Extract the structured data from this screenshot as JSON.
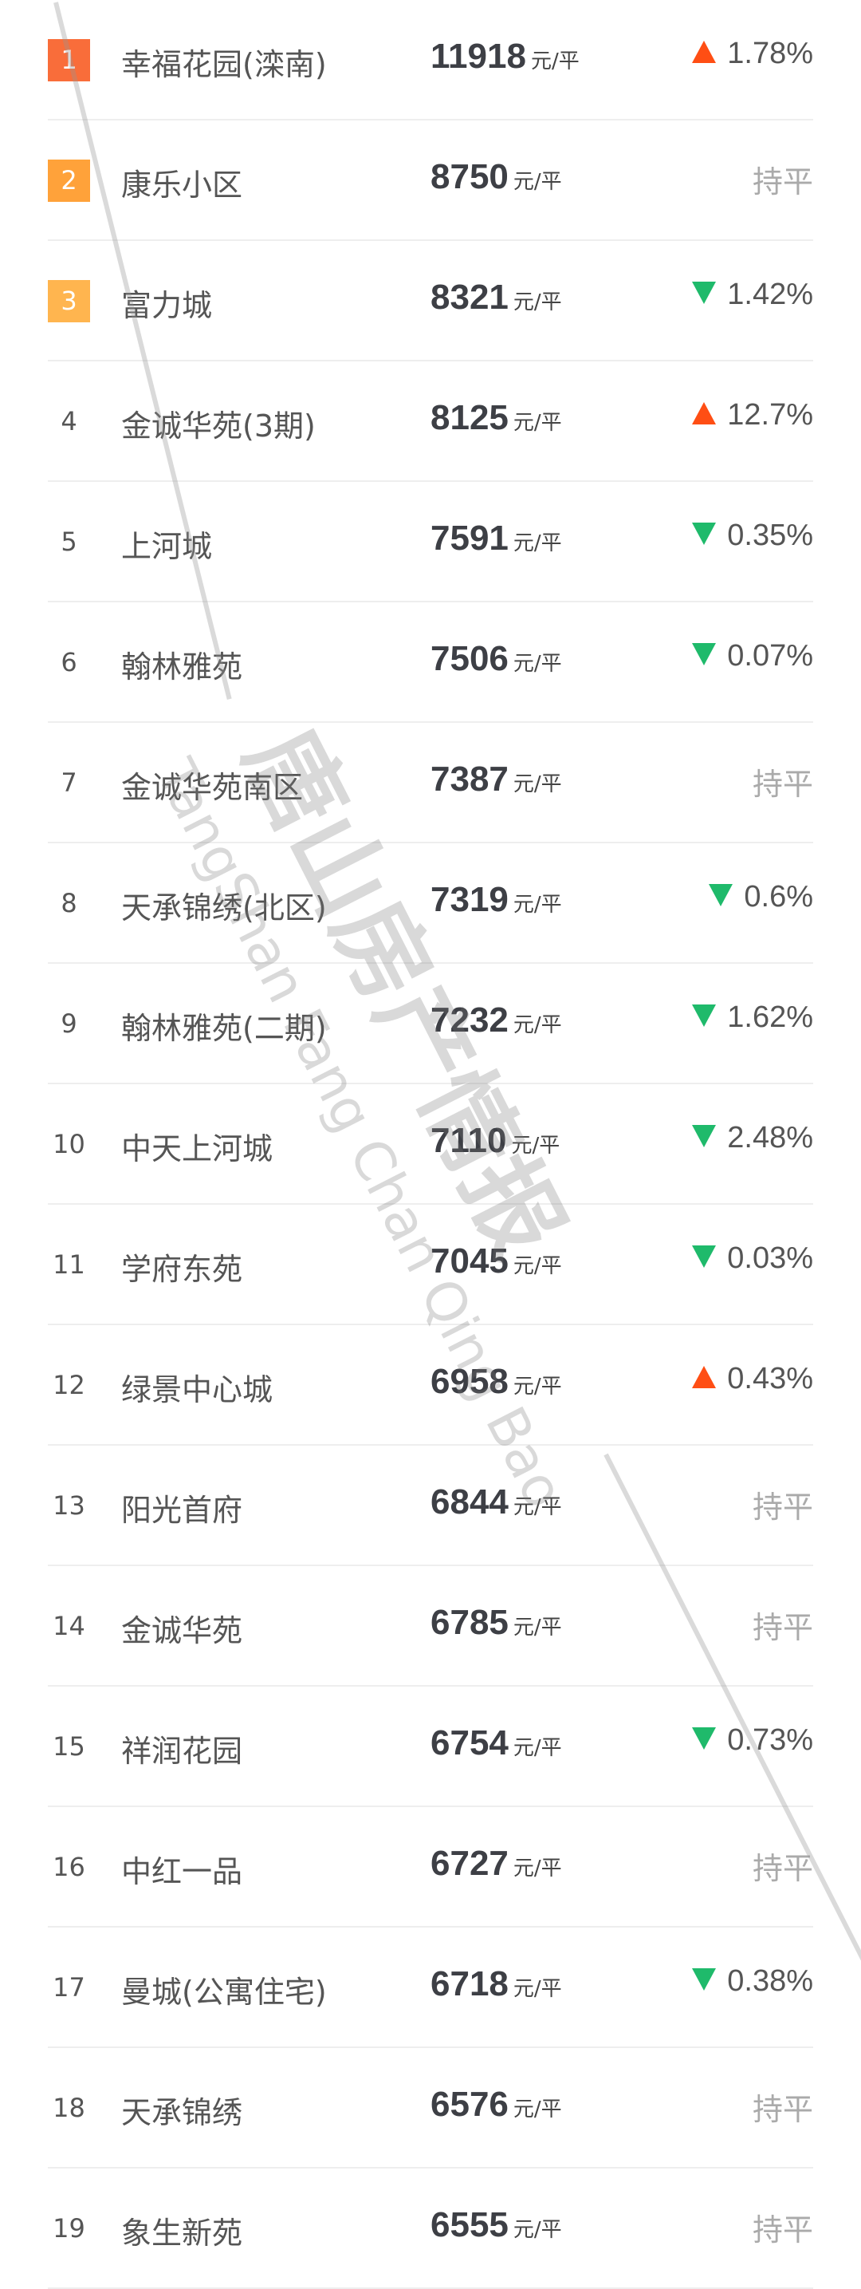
{
  "unit": "元/平",
  "colors": {
    "rank1": "#f96d3a",
    "rank2": "#ffa23a",
    "rank3": "#ffb54f",
    "up": "#ff4e14",
    "down": "#1fba6b"
  },
  "watermark": {
    "cn": "唐山房产情报",
    "en": "TangShan Fang Chan Qing Bao"
  },
  "rows": [
    {
      "rank": "1",
      "name": "幸福花园(滦南)",
      "price": "11918",
      "trend": "up",
      "change": "1.78%"
    },
    {
      "rank": "2",
      "name": "康乐小区",
      "price": "8750",
      "trend": "flat",
      "change": "持平"
    },
    {
      "rank": "3",
      "name": "富力城",
      "price": "8321",
      "trend": "down",
      "change": "1.42%"
    },
    {
      "rank": "4",
      "name": "金诚华苑(3期)",
      "price": "8125",
      "trend": "up",
      "change": "12.7%"
    },
    {
      "rank": "5",
      "name": "上河城",
      "price": "7591",
      "trend": "down",
      "change": "0.35%"
    },
    {
      "rank": "6",
      "name": "翰林雅苑",
      "price": "7506",
      "trend": "down",
      "change": "0.07%"
    },
    {
      "rank": "7",
      "name": "金诚华苑南区",
      "price": "7387",
      "trend": "flat",
      "change": "持平"
    },
    {
      "rank": "8",
      "name": "天承锦绣(北区)",
      "price": "7319",
      "trend": "down",
      "change": "0.6%"
    },
    {
      "rank": "9",
      "name": "翰林雅苑(二期)",
      "price": "7232",
      "trend": "down",
      "change": "1.62%"
    },
    {
      "rank": "10",
      "name": "中天上河城",
      "price": "7110",
      "trend": "down",
      "change": "2.48%"
    },
    {
      "rank": "11",
      "name": "学府东苑",
      "price": "7045",
      "trend": "down",
      "change": "0.03%"
    },
    {
      "rank": "12",
      "name": "绿景中心城",
      "price": "6958",
      "trend": "up",
      "change": "0.43%"
    },
    {
      "rank": "13",
      "name": "阳光首府",
      "price": "6844",
      "trend": "flat",
      "change": "持平"
    },
    {
      "rank": "14",
      "name": "金诚华苑",
      "price": "6785",
      "trend": "flat",
      "change": "持平"
    },
    {
      "rank": "15",
      "name": "祥润花园",
      "price": "6754",
      "trend": "down",
      "change": "0.73%"
    },
    {
      "rank": "16",
      "name": "中红一品",
      "price": "6727",
      "trend": "flat",
      "change": "持平"
    },
    {
      "rank": "17",
      "name": "曼城(公寓住宅)",
      "price": "6718",
      "trend": "down",
      "change": "0.38%"
    },
    {
      "rank": "18",
      "name": "天承锦绣",
      "price": "6576",
      "trend": "flat",
      "change": "持平"
    },
    {
      "rank": "19",
      "name": "象生新苑",
      "price": "6555",
      "trend": "flat",
      "change": "持平"
    }
  ]
}
